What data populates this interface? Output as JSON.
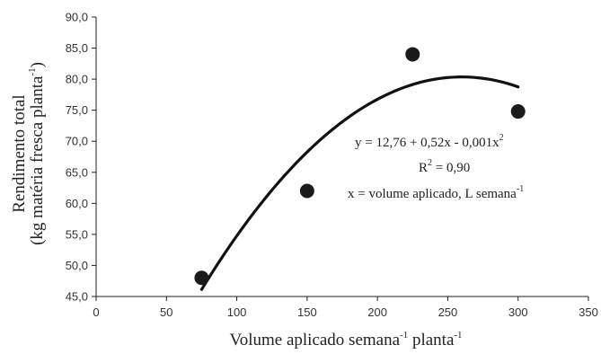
{
  "chart_data": {
    "type": "scatter",
    "x": [
      75,
      150,
      225,
      300
    ],
    "y": [
      48.0,
      62.0,
      84.0,
      74.8
    ],
    "fit_curve": {
      "equation": "y = 12,76 + 0,52x - 0,001x²",
      "intercept": 12.76,
      "b1": 0.52,
      "b2": -0.001,
      "x_range": [
        75,
        300
      ]
    },
    "xlim": [
      0,
      350
    ],
    "ylim": [
      45,
      90
    ],
    "xticks": [
      0,
      50,
      100,
      150,
      200,
      250,
      300,
      350
    ],
    "yticks": [
      45,
      50,
      55,
      60,
      65,
      70,
      75,
      80,
      85,
      90
    ],
    "ytick_labels": [
      "45,0",
      "50,0",
      "55,0",
      "60,0",
      "65,0",
      "70,0",
      "75,0",
      "80,0",
      "85,0",
      "90,0"
    ],
    "xlabel": {
      "main": "Volume aplicado semana",
      "sup1": "-1",
      "mid": " planta",
      "sup2": "-1"
    },
    "ylabel_line1": "Rendimento total",
    "ylabel_line2": {
      "main": "(kg matéria fresca planta",
      "sup": "-1",
      "end": ")"
    },
    "annotations": {
      "eq": {
        "main": "y = 12,76 + 0,52x - 0,001x",
        "sup": "2"
      },
      "r2": {
        "main": "R",
        "sup": "2",
        "end": " = 0,90"
      },
      "xdef": {
        "main": "x = volume aplicado, L semana",
        "sup": "-1"
      }
    },
    "grid": false,
    "marker_color": "#1a1a1a",
    "line_color": "#111111"
  }
}
